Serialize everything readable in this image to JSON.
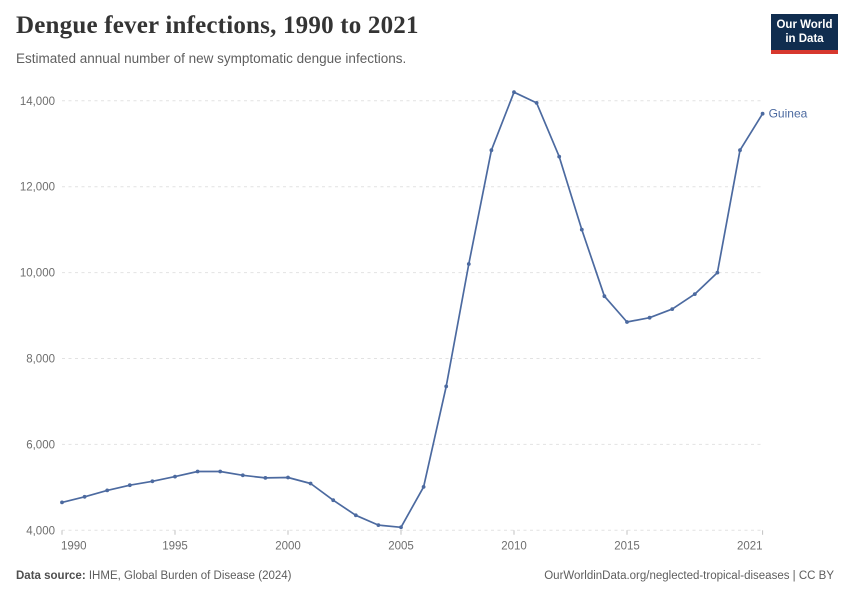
{
  "header": {
    "title": "Dengue fever infections, 1990 to 2021",
    "subtitle": "Estimated annual number of new symptomatic dengue infections."
  },
  "logo": {
    "line1": "Our World",
    "line2": "in Data",
    "bg_color": "#102d4f",
    "accent_color": "#d7382e"
  },
  "chart_data": {
    "type": "line",
    "title": "Dengue fever infections, 1990 to 2021",
    "xlabel": "",
    "ylabel": "",
    "grid": true,
    "legend": "line-end-label",
    "x": [
      1990,
      1991,
      1992,
      1993,
      1994,
      1995,
      1996,
      1997,
      1998,
      1999,
      2000,
      2001,
      2002,
      2003,
      2004,
      2005,
      2006,
      2007,
      2008,
      2009,
      2010,
      2011,
      2012,
      2013,
      2014,
      2015,
      2016,
      2017,
      2018,
      2019,
      2020,
      2021
    ],
    "series": [
      {
        "name": "Guinea",
        "color": "#4c6aa0",
        "values": [
          4650,
          4780,
          4930,
          5050,
          5140,
          5250,
          5370,
          5370,
          5280,
          5220,
          5230,
          5090,
          4700,
          4350,
          4120,
          4070,
          5010,
          7350,
          10200,
          12850,
          14200,
          13950,
          12700,
          11000,
          9450,
          8850,
          8950,
          9150,
          9500,
          10000,
          12850,
          13700
        ]
      }
    ],
    "xticks": [
      1990,
      1995,
      2000,
      2005,
      2010,
      2015,
      2021
    ],
    "yticks": [
      4000,
      6000,
      8000,
      10000,
      12000,
      14000
    ],
    "ylim": [
      4000,
      14300
    ],
    "axis_label_color": "#6e6e6e",
    "grid_color": "#e2e2e2"
  },
  "footer": {
    "source_label": "Data source:",
    "source_value": " IHME, Global Burden of Disease (2024)",
    "right": "OurWorldinData.org/neglected-tropical-diseases | CC BY"
  }
}
